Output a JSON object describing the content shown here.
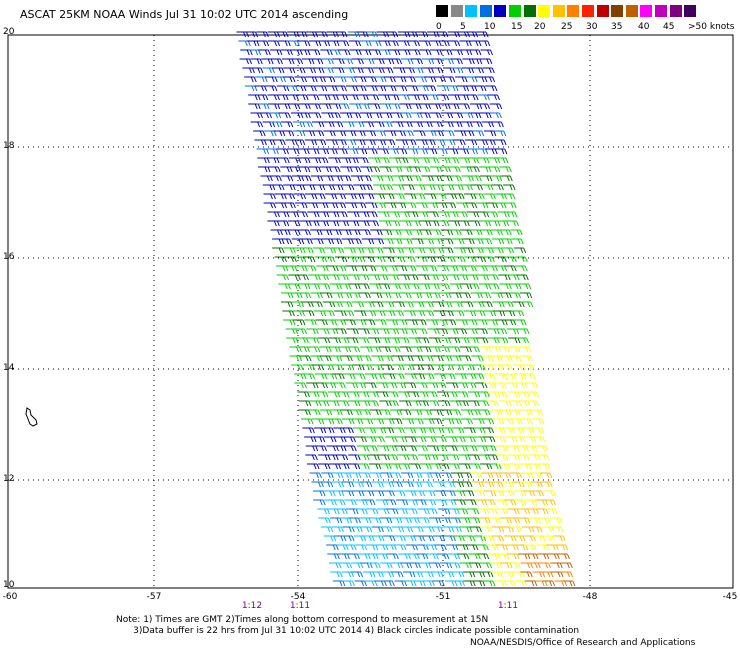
{
  "title": "ASCAT 25KM NOAA Winds Jul 31 10:02 UTC 2014 ascending",
  "legend": {
    "labels": [
      "0",
      "5",
      "10",
      "15",
      "20",
      "25",
      "30",
      "35",
      "40",
      "45",
      ">50 knots"
    ],
    "colors": [
      "#000000",
      "#888888",
      "#00c0ff",
      "#0070e0",
      "#0000c0",
      "#00d000",
      "#007000",
      "#ffff00",
      "#ffc000",
      "#ff8000",
      "#ff2000",
      "#c00000",
      "#804000",
      "#c06000",
      "#ff00ff",
      "#c000c0",
      "#800080",
      "#400060"
    ]
  },
  "axes": {
    "lat_labels": [
      "20",
      "18",
      "16",
      "14",
      "12",
      "10"
    ],
    "lon_labels": [
      "-60",
      "-57",
      "-54",
      "-51",
      "-48",
      "-45"
    ]
  },
  "time_labels": [
    "1:12",
    "1:11",
    "1:11"
  ],
  "notes": [
    "Note: 1) Times are GMT 2)Times along bottom correspond to measurement at 15N",
    "3)Data buffer is 22 hrs from Jul 31 10:02 UTC 2014 4) Black circles indicate possible contamination"
  ],
  "credit": "NOAA/NESDIS/Office of Research and Applications"
}
